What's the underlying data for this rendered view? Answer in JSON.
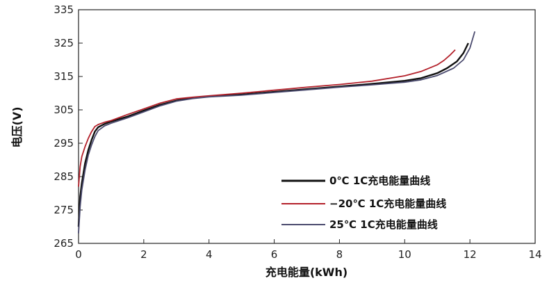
{
  "chart_data": {
    "type": "line",
    "title": "",
    "xlabel": "充电能量(kWh)",
    "ylabel": "电压(V)",
    "xlim": [
      0,
      14
    ],
    "ylim": [
      265,
      335
    ],
    "xticks": [
      "0",
      "2",
      "4",
      "6",
      "8",
      "10",
      "12",
      "14"
    ],
    "yticks": [
      "265",
      "275",
      "285",
      "295",
      "305",
      "315",
      "325",
      "335"
    ],
    "grid": false,
    "legend_position": "bottom-right",
    "series": [
      {
        "name": "0℃ 1C充电能量曲线",
        "color": "#111111",
        "x": [
          0.0,
          0.05,
          0.1,
          0.2,
          0.3,
          0.4,
          0.5,
          0.6,
          0.8,
          1.0,
          1.5,
          2.0,
          2.5,
          3.0,
          3.5,
          4.0,
          5.0,
          6.0,
          7.0,
          8.0,
          9.0,
          10.0,
          10.5,
          11.0,
          11.3,
          11.6,
          11.8,
          11.95
        ],
        "y": [
          270,
          279,
          283,
          289,
          293,
          296,
          298.5,
          299.8,
          300.8,
          301.5,
          303,
          304.8,
          306.5,
          307.8,
          308.6,
          309,
          309.6,
          310.4,
          311.2,
          312,
          312.8,
          313.7,
          314.5,
          316,
          317.5,
          319.5,
          322,
          325
        ]
      },
      {
        "name": "−20℃ 1C充电能量曲线",
        "color": "#b3202a",
        "x": [
          0.0,
          0.05,
          0.1,
          0.2,
          0.3,
          0.4,
          0.5,
          0.6,
          0.8,
          1.0,
          1.5,
          2.0,
          2.5,
          3.0,
          3.5,
          4.0,
          5.0,
          6.0,
          7.0,
          8.0,
          9.0,
          10.0,
          10.5,
          11.0,
          11.2,
          11.4,
          11.55
        ],
        "y": [
          282,
          288,
          291,
          294,
          296.5,
          298.5,
          300,
          300.6,
          301.3,
          301.8,
          303.6,
          305.3,
          307,
          308.3,
          308.8,
          309.2,
          310,
          310.9,
          311.8,
          312.6,
          313.6,
          315.2,
          316.5,
          318.5,
          319.8,
          321.5,
          323
        ]
      },
      {
        "name": "25℃ 1C充电能量曲线",
        "color": "#4a4a6e",
        "x": [
          0.0,
          0.05,
          0.1,
          0.2,
          0.3,
          0.4,
          0.5,
          0.6,
          0.8,
          1.0,
          1.5,
          2.0,
          2.5,
          3.0,
          3.5,
          4.0,
          5.0,
          6.0,
          7.0,
          8.0,
          9.0,
          10.0,
          10.5,
          11.0,
          11.5,
          11.8,
          12.0,
          12.15
        ],
        "y": [
          268,
          276,
          281,
          287,
          291.5,
          294.5,
          297,
          298.8,
          300.2,
          301,
          302.6,
          304.4,
          306.2,
          307.6,
          308.4,
          308.9,
          309.4,
          310.2,
          311,
          311.8,
          312.5,
          313.3,
          314,
          315.3,
          317.5,
          320,
          323.5,
          328.5
        ]
      }
    ]
  }
}
